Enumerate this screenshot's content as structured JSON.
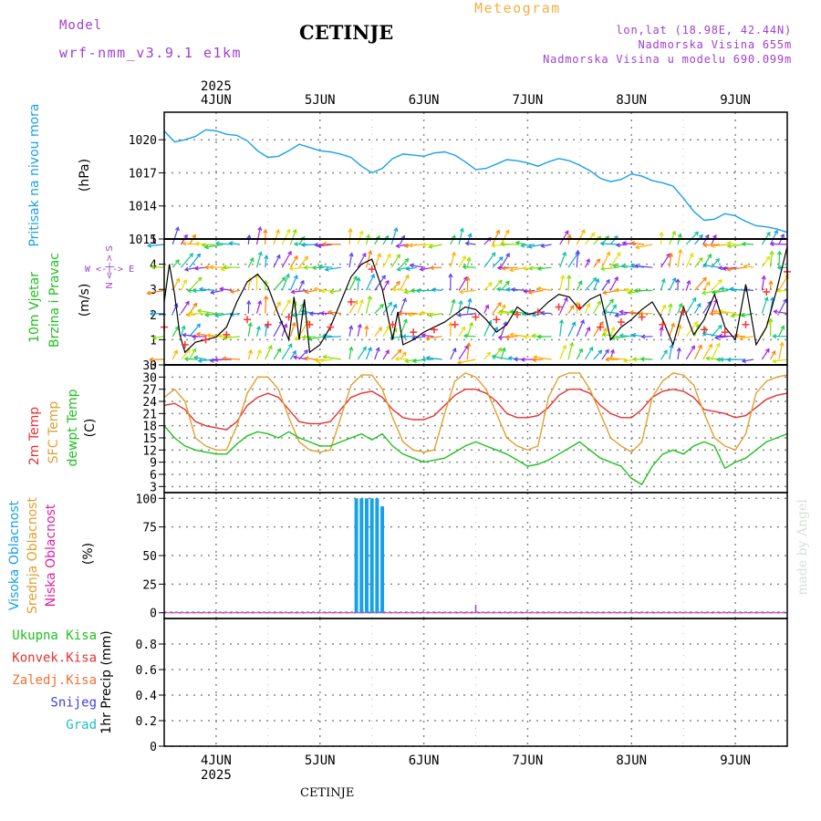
{
  "header": {
    "model_label": "Model",
    "model_name": "wrf-nmm_v3.9.1 e1km",
    "station": "CETINJE",
    "title": "Meteogram",
    "coords": "lon,lat (18.98E, 42.44N)",
    "elevation": "Nadmorska Visina 655m",
    "model_elevation": "Nadmorska Visina u modelu 690.099m",
    "footer_station": "CETINJE",
    "watermark": "made by Angel"
  },
  "colors": {
    "pressure": "#1aa0e8",
    "wind_speed": "#000000",
    "gust_marks": "#ff3030",
    "temp2m": "#e83030",
    "sfc_temp": "#e0a030",
    "dewpoint": "#20c020",
    "high_cloud": "#1aa0e8",
    "mid_cloud": "#e0a030",
    "low_cloud": "#e020a0",
    "label_purple": "#a040d0",
    "label_orange": "#f0b040"
  },
  "chart_data": {
    "type": "line",
    "days": [
      "4JUN",
      "5JUN",
      "6JUN",
      "7JUN",
      "8JUN",
      "9JUN"
    ],
    "year": "2025",
    "x_range_days": [
      -0.5,
      5.5
    ],
    "panels": [
      {
        "id": "pressure",
        "ylabels": [
          "Pritisak na nivou mora",
          "(hPa)"
        ],
        "ylim": [
          1011,
          1022.5
        ],
        "yticks": [
          "1011",
          "1014",
          "1017",
          "1020"
        ],
        "series": [
          {
            "name": "Pritisak na nivou mora",
            "x": [
              -0.5,
              -0.4,
              -0.3,
              -0.2,
              -0.1,
              0,
              0.1,
              0.2,
              0.3,
              0.4,
              0.5,
              0.6,
              0.7,
              0.8,
              0.9,
              1.0,
              1.1,
              1.2,
              1.3,
              1.4,
              1.5,
              1.6,
              1.7,
              1.8,
              1.9,
              2.0,
              2.1,
              2.2,
              2.3,
              2.4,
              2.5,
              2.6,
              2.7,
              2.8,
              2.9,
              3.0,
              3.1,
              3.2,
              3.3,
              3.4,
              3.5,
              3.6,
              3.7,
              3.8,
              3.9,
              4.0,
              4.1,
              4.2,
              4.3,
              4.4,
              4.5,
              4.6,
              4.7,
              4.8,
              4.9,
              5.0,
              5.1,
              5.2,
              5.3,
              5.4,
              5.5
            ],
            "values": [
              1020.8,
              1019.8,
              1020.0,
              1020.3,
              1020.9,
              1020.8,
              1020.5,
              1020.4,
              1019.9,
              1019.0,
              1018.4,
              1018.5,
              1019.0,
              1019.6,
              1019.3,
              1019.0,
              1018.9,
              1018.7,
              1018.4,
              1017.6,
              1017.0,
              1017.4,
              1018.3,
              1018.7,
              1018.6,
              1018.5,
              1018.8,
              1018.9,
              1018.6,
              1018.0,
              1017.3,
              1017.4,
              1017.8,
              1018.2,
              1018.1,
              1017.9,
              1017.6,
              1018.0,
              1018.3,
              1018.1,
              1017.7,
              1017.2,
              1016.5,
              1016.2,
              1016.4,
              1016.9,
              1016.7,
              1016.3,
              1016.1,
              1015.8,
              1014.7,
              1013.5,
              1012.7,
              1012.8,
              1013.3,
              1013.1,
              1012.6,
              1012.2,
              1012.1,
              1011.9,
              1011.6
            ]
          }
        ]
      },
      {
        "id": "wind",
        "ylabels": [
          "10m Vjetar",
          "Brzina i Pravac",
          "(m/s)"
        ],
        "compass_label": "W <-|-> E",
        "compass_vertical": "N <-|-> S",
        "ylim": [
          0,
          5
        ],
        "yticks": [
          "0",
          "1",
          "2",
          "3",
          "4",
          "5"
        ],
        "series": [
          {
            "name": "10m Vjetar Brzina",
            "x": [
              -0.5,
              -0.45,
              -0.4,
              -0.35,
              -0.3,
              -0.25,
              -0.2,
              -0.1,
              0,
              0.1,
              0.2,
              0.3,
              0.4,
              0.5,
              0.6,
              0.7,
              0.75,
              0.8,
              0.85,
              0.9,
              1.0,
              1.1,
              1.2,
              1.3,
              1.4,
              1.5,
              1.6,
              1.7,
              1.75,
              1.8,
              1.9,
              2.0,
              2.1,
              2.2,
              2.3,
              2.4,
              2.5,
              2.6,
              2.7,
              2.8,
              2.9,
              3.0,
              3.1,
              3.2,
              3.3,
              3.4,
              3.5,
              3.6,
              3.7,
              3.8,
              3.9,
              4.0,
              4.1,
              4.2,
              4.3,
              4.4,
              4.5,
              4.6,
              4.7,
              4.8,
              4.9,
              5.0,
              5.1,
              5.2,
              5.3,
              5.4,
              5.5
            ],
            "values": [
              2.5,
              4.0,
              2.8,
              1.2,
              0.5,
              0.7,
              0.9,
              1.0,
              1.1,
              1.5,
              2.5,
              3.3,
              3.6,
              3.1,
              2.0,
              1.0,
              2.7,
              1.0,
              2.6,
              0.5,
              0.8,
              1.5,
              2.5,
              3.5,
              4.0,
              4.2,
              3.0,
              1.0,
              2.1,
              0.8,
              1.0,
              1.3,
              1.5,
              1.7,
              2.0,
              2.3,
              2.2,
              1.8,
              1.3,
              1.6,
              2.3,
              2.0,
              2.1,
              2.5,
              2.8,
              2.7,
              2.2,
              2.6,
              2.8,
              1.0,
              1.5,
              1.8,
              2.2,
              2.5,
              1.8,
              0.8,
              2.3,
              1.2,
              1.8,
              2.8,
              1.5,
              1.0,
              3.2,
              0.8,
              1.5,
              3.0,
              4.7
            ]
          },
          {
            "name": "Udari vjetra",
            "x": [
              -0.5,
              -0.3,
              -0.1,
              0.1,
              0.3,
              0.5,
              0.7,
              0.9,
              1.1,
              1.3,
              1.5,
              1.7,
              1.9,
              2.1,
              2.3,
              2.5,
              2.7,
              2.9,
              3.1,
              3.3,
              3.5,
              3.7,
              3.9,
              4.1,
              4.3,
              4.5,
              4.7,
              4.9,
              5.1,
              5.3,
              5.5
            ],
            "values": [
              1.5,
              0.8,
              1.0,
              1.2,
              1.8,
              1.6,
              1.9,
              1.6,
              1.5,
              2.5,
              3.8,
              1.6,
              1.3,
              1.4,
              1.6,
              1.9,
              1.8,
              2.0,
              2.1,
              2.3,
              2.3,
              1.5,
              1.7,
              1.9,
              1.6,
              2.1,
              1.4,
              1.3,
              1.6,
              2.9,
              3.7
            ]
          }
        ]
      },
      {
        "id": "temperature",
        "ylabels": [
          "2m Temp",
          "SFC Temp",
          "dewpt Temp",
          "(C)"
        ],
        "ylim": [
          1.5,
          33
        ],
        "yticks": [
          "3",
          "6",
          "9",
          "12",
          "15",
          "18",
          "21",
          "24",
          "27",
          "30",
          "33"
        ],
        "series": [
          {
            "name": "2m Temp",
            "x": [
              -0.5,
              -0.4,
              -0.3,
              -0.2,
              -0.1,
              0,
              0.1,
              0.2,
              0.3,
              0.4,
              0.5,
              0.6,
              0.7,
              0.8,
              0.9,
              1.0,
              1.1,
              1.2,
              1.3,
              1.4,
              1.5,
              1.6,
              1.7,
              1.8,
              1.9,
              2.0,
              2.1,
              2.2,
              2.3,
              2.4,
              2.5,
              2.6,
              2.7,
              2.8,
              2.9,
              3.0,
              3.1,
              3.2,
              3.3,
              3.4,
              3.5,
              3.6,
              3.7,
              3.8,
              3.9,
              4.0,
              4.1,
              4.2,
              4.3,
              4.4,
              4.5,
              4.6,
              4.7,
              4.8,
              4.9,
              5.0,
              5.1,
              5.2,
              5.3,
              5.4,
              5.5
            ],
            "values": [
              23,
              23.5,
              22,
              19,
              18,
              17.5,
              17,
              19,
              23,
              25,
              26,
              25,
              22,
              19,
              18.5,
              18.5,
              19,
              22,
              25,
              26,
              26.5,
              25,
              22,
              20,
              19.5,
              19.5,
              20.5,
              23,
              25.5,
              27,
              27,
              26,
              24,
              21,
              20,
              20,
              20.5,
              22.5,
              25.5,
              27,
              27,
              26,
              23,
              21,
              20,
              20,
              22,
              25,
              26.5,
              27,
              26.5,
              25,
              22,
              21.5,
              21,
              20,
              20.5,
              22.5,
              24.5,
              25.5,
              26
            ]
          },
          {
            "name": "SFC Temp",
            "x": [
              -0.5,
              -0.4,
              -0.3,
              -0.2,
              -0.1,
              0,
              0.1,
              0.2,
              0.3,
              0.4,
              0.5,
              0.6,
              0.7,
              0.8,
              0.9,
              1.0,
              1.1,
              1.2,
              1.3,
              1.4,
              1.5,
              1.6,
              1.7,
              1.8,
              1.9,
              2.0,
              2.1,
              2.2,
              2.3,
              2.4,
              2.5,
              2.6,
              2.7,
              2.8,
              2.9,
              3.0,
              3.1,
              3.2,
              3.3,
              3.4,
              3.5,
              3.6,
              3.7,
              3.8,
              3.9,
              4.0,
              4.1,
              4.2,
              4.3,
              4.4,
              4.5,
              4.6,
              4.7,
              4.8,
              4.9,
              5.0,
              5.1,
              5.2,
              5.3,
              5.4,
              5.5
            ],
            "values": [
              25,
              27,
              24,
              15,
              13,
              12,
              12,
              18,
              26,
              30,
              30,
              27,
              20,
              14,
              12,
              11.5,
              12,
              20,
              28,
              30.5,
              30.5,
              27,
              20,
              14,
              12,
              11.5,
              12,
              21,
              29,
              31,
              30,
              27,
              21,
              15,
              13,
              12,
              13,
              25,
              30,
              31,
              31,
              27,
              21,
              15,
              13,
              11.5,
              14,
              25,
              29,
              31,
              30.5,
              28,
              21,
              15,
              13,
              12,
              16,
              26,
              29,
              30,
              30.5
            ]
          },
          {
            "name": "dewpt Temp",
            "x": [
              -0.5,
              -0.4,
              -0.3,
              -0.2,
              -0.1,
              0,
              0.1,
              0.2,
              0.3,
              0.4,
              0.5,
              0.6,
              0.7,
              0.8,
              0.9,
              1.0,
              1.1,
              1.2,
              1.3,
              1.4,
              1.5,
              1.6,
              1.7,
              1.8,
              1.9,
              2.0,
              2.1,
              2.2,
              2.3,
              2.4,
              2.5,
              2.6,
              2.7,
              2.8,
              2.9,
              3.0,
              3.1,
              3.2,
              3.3,
              3.4,
              3.5,
              3.6,
              3.7,
              3.8,
              3.9,
              4.0,
              4.1,
              4.2,
              4.3,
              4.4,
              4.5,
              4.6,
              4.7,
              4.8,
              4.9,
              5.0,
              5.1,
              5.2,
              5.3,
              5.4,
              5.5
            ],
            "values": [
              18,
              15,
              13,
              12,
              11.5,
              11,
              11,
              13.5,
              15.5,
              16.5,
              16,
              15,
              16.5,
              15,
              14,
              13,
              13,
              14,
              15,
              16,
              14.5,
              16,
              13,
              11,
              10,
              9,
              9.5,
              10,
              11.5,
              13,
              14,
              13,
              12,
              11,
              9.5,
              8,
              8.5,
              9.5,
              11,
              12.5,
              14,
              12,
              10,
              9,
              8,
              5,
              3.5,
              8,
              11,
              12,
              11,
              13,
              14,
              13,
              7.5,
              9,
              10,
              12,
              14,
              15,
              16
            ]
          }
        ]
      },
      {
        "id": "cloud",
        "ylabels": [
          "Visoka Oblacnost",
          "Srednja Oblacnost",
          "Niska Oblacnost",
          "(%)"
        ],
        "ylim": [
          -5,
          105
        ],
        "yticks": [
          "0",
          "25",
          "50",
          "75",
          "100"
        ],
        "series": [
          {
            "name": "Visoka Oblacnost",
            "x": [
              1.35,
              1.4,
              1.45,
              1.5,
              1.55,
              1.6
            ],
            "values": [
              100,
              100,
              100,
              100,
              100,
              93
            ]
          },
          {
            "name": "Niska Oblacnost",
            "x": [
              2.5
            ],
            "values": [
              7
            ]
          }
        ]
      },
      {
        "id": "precip",
        "ylabels": [
          "1hr Precip (mm)"
        ],
        "legend": [
          "Ukupna Kisa",
          "Konvek.Kisa",
          "Zaledj.Kisa",
          "Snijeg",
          "Grad"
        ],
        "legend_colors": [
          "#20c020",
          "#e83030",
          "#f07030",
          "#4040e0",
          "#20c0c0"
        ],
        "ylim": [
          0,
          1.0
        ],
        "yticks": [
          "0",
          "0.2",
          "0.4",
          "0.6",
          "0.8"
        ],
        "series": []
      }
    ]
  }
}
